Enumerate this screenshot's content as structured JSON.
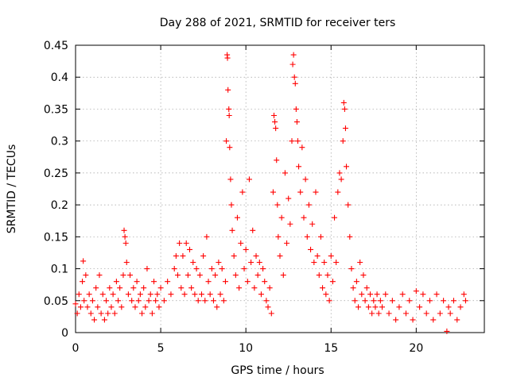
{
  "chart_data": {
    "type": "scatter",
    "title": "Day 288 of 2021, SRMTID for receiver ters",
    "xlabel": "GPS time / hours",
    "ylabel": "SRMTID / TECUs",
    "xlim": [
      0,
      24
    ],
    "ylim": [
      0,
      0.45
    ],
    "xticks": [
      "0",
      "5",
      "10",
      "15",
      "20"
    ],
    "xtick_values": [
      0,
      5,
      10,
      15,
      20
    ],
    "yticks": [
      "0",
      "0.05",
      "0.1",
      "0.15",
      "0.2",
      "0.25",
      "0.3",
      "0.35",
      "0.4",
      "0.45"
    ],
    "ytick_values": [
      0,
      0.05,
      0.1,
      0.15,
      0.2,
      0.25,
      0.3,
      0.35,
      0.4,
      0.45
    ],
    "grid": true,
    "marker": "+",
    "series_color": "#ff0000",
    "series": [
      {
        "name": "SRMTID",
        "points": [
          [
            0.0,
            0.045
          ],
          [
            0.1,
            0.03
          ],
          [
            0.2,
            0.06
          ],
          [
            0.3,
            0.04
          ],
          [
            0.4,
            0.08
          ],
          [
            0.45,
            0.112
          ],
          [
            0.5,
            0.05
          ],
          [
            0.6,
            0.09
          ],
          [
            0.7,
            0.04
          ],
          [
            0.8,
            0.06
          ],
          [
            0.9,
            0.03
          ],
          [
            1.0,
            0.05
          ],
          [
            1.1,
            0.02
          ],
          [
            1.2,
            0.07
          ],
          [
            1.3,
            0.04
          ],
          [
            1.4,
            0.09
          ],
          [
            1.5,
            0.03
          ],
          [
            1.6,
            0.06
          ],
          [
            1.7,
            0.02
          ],
          [
            1.8,
            0.05
          ],
          [
            1.9,
            0.03
          ],
          [
            2.0,
            0.07
          ],
          [
            2.1,
            0.04
          ],
          [
            2.2,
            0.06
          ],
          [
            2.3,
            0.03
          ],
          [
            2.4,
            0.08
          ],
          [
            2.5,
            0.05
          ],
          [
            2.6,
            0.07
          ],
          [
            2.7,
            0.04
          ],
          [
            2.8,
            0.09
          ],
          [
            2.85,
            0.16
          ],
          [
            2.9,
            0.15
          ],
          [
            2.95,
            0.14
          ],
          [
            3.0,
            0.11
          ],
          [
            3.1,
            0.06
          ],
          [
            3.2,
            0.09
          ],
          [
            3.3,
            0.05
          ],
          [
            3.4,
            0.07
          ],
          [
            3.5,
            0.04
          ],
          [
            3.6,
            0.08
          ],
          [
            3.7,
            0.05
          ],
          [
            3.8,
            0.06
          ],
          [
            3.9,
            0.03
          ],
          [
            4.0,
            0.07
          ],
          [
            4.1,
            0.04
          ],
          [
            4.2,
            0.1
          ],
          [
            4.3,
            0.05
          ],
          [
            4.4,
            0.06
          ],
          [
            4.5,
            0.03
          ],
          [
            4.6,
            0.08
          ],
          [
            4.7,
            0.05
          ],
          [
            4.8,
            0.06
          ],
          [
            4.9,
            0.04
          ],
          [
            5.0,
            0.07
          ],
          [
            5.2,
            0.05
          ],
          [
            5.4,
            0.08
          ],
          [
            5.6,
            0.06
          ],
          [
            5.8,
            0.1
          ],
          [
            5.9,
            0.12
          ],
          [
            6.0,
            0.09
          ],
          [
            6.1,
            0.14
          ],
          [
            6.2,
            0.07
          ],
          [
            6.3,
            0.12
          ],
          [
            6.4,
            0.06
          ],
          [
            6.5,
            0.14
          ],
          [
            6.6,
            0.09
          ],
          [
            6.7,
            0.13
          ],
          [
            6.8,
            0.07
          ],
          [
            6.9,
            0.11
          ],
          [
            7.0,
            0.06
          ],
          [
            7.1,
            0.1
          ],
          [
            7.2,
            0.05
          ],
          [
            7.3,
            0.09
          ],
          [
            7.4,
            0.06
          ],
          [
            7.5,
            0.12
          ],
          [
            7.6,
            0.05
          ],
          [
            7.7,
            0.15
          ],
          [
            7.8,
            0.08
          ],
          [
            7.9,
            0.06
          ],
          [
            8.0,
            0.1
          ],
          [
            8.1,
            0.05
          ],
          [
            8.2,
            0.09
          ],
          [
            8.3,
            0.04
          ],
          [
            8.4,
            0.11
          ],
          [
            8.5,
            0.06
          ],
          [
            8.6,
            0.1
          ],
          [
            8.7,
            0.05
          ],
          [
            8.8,
            0.08
          ],
          [
            8.85,
            0.3
          ],
          [
            8.9,
            0.435
          ],
          [
            8.92,
            0.43
          ],
          [
            8.95,
            0.38
          ],
          [
            9.0,
            0.35
          ],
          [
            9.02,
            0.34
          ],
          [
            9.05,
            0.29
          ],
          [
            9.1,
            0.24
          ],
          [
            9.15,
            0.2
          ],
          [
            9.2,
            0.16
          ],
          [
            9.3,
            0.12
          ],
          [
            9.4,
            0.09
          ],
          [
            9.5,
            0.18
          ],
          [
            9.6,
            0.07
          ],
          [
            9.7,
            0.14
          ],
          [
            9.8,
            0.22
          ],
          [
            9.9,
            0.1
          ],
          [
            10.0,
            0.13
          ],
          [
            10.1,
            0.08
          ],
          [
            10.2,
            0.24
          ],
          [
            10.3,
            0.11
          ],
          [
            10.4,
            0.16
          ],
          [
            10.5,
            0.07
          ],
          [
            10.6,
            0.12
          ],
          [
            10.7,
            0.09
          ],
          [
            10.8,
            0.11
          ],
          [
            10.9,
            0.06
          ],
          [
            11.0,
            0.1
          ],
          [
            11.1,
            0.08
          ],
          [
            11.2,
            0.05
          ],
          [
            11.3,
            0.04
          ],
          [
            11.4,
            0.07
          ],
          [
            11.5,
            0.03
          ],
          [
            11.6,
            0.22
          ],
          [
            11.65,
            0.34
          ],
          [
            11.7,
            0.33
          ],
          [
            11.75,
            0.32
          ],
          [
            11.8,
            0.27
          ],
          [
            11.85,
            0.2
          ],
          [
            11.9,
            0.15
          ],
          [
            12.0,
            0.12
          ],
          [
            12.1,
            0.18
          ],
          [
            12.2,
            0.09
          ],
          [
            12.3,
            0.25
          ],
          [
            12.4,
            0.14
          ],
          [
            12.5,
            0.21
          ],
          [
            12.6,
            0.17
          ],
          [
            12.7,
            0.3
          ],
          [
            12.75,
            0.42
          ],
          [
            12.8,
            0.435
          ],
          [
            12.85,
            0.4
          ],
          [
            12.9,
            0.39
          ],
          [
            12.95,
            0.35
          ],
          [
            13.0,
            0.33
          ],
          [
            13.05,
            0.3
          ],
          [
            13.1,
            0.26
          ],
          [
            13.2,
            0.22
          ],
          [
            13.3,
            0.29
          ],
          [
            13.4,
            0.18
          ],
          [
            13.5,
            0.24
          ],
          [
            13.6,
            0.15
          ],
          [
            13.7,
            0.2
          ],
          [
            13.8,
            0.13
          ],
          [
            13.9,
            0.17
          ],
          [
            14.0,
            0.11
          ],
          [
            14.1,
            0.22
          ],
          [
            14.2,
            0.12
          ],
          [
            14.3,
            0.09
          ],
          [
            14.4,
            0.15
          ],
          [
            14.5,
            0.07
          ],
          [
            14.6,
            0.11
          ],
          [
            14.7,
            0.06
          ],
          [
            14.8,
            0.09
          ],
          [
            14.9,
            0.05
          ],
          [
            15.0,
            0.12
          ],
          [
            15.1,
            0.08
          ],
          [
            15.2,
            0.18
          ],
          [
            15.3,
            0.11
          ],
          [
            15.4,
            0.22
          ],
          [
            15.5,
            0.25
          ],
          [
            15.6,
            0.24
          ],
          [
            15.7,
            0.3
          ],
          [
            15.75,
            0.36
          ],
          [
            15.8,
            0.35
          ],
          [
            15.85,
            0.32
          ],
          [
            15.9,
            0.26
          ],
          [
            16.0,
            0.2
          ],
          [
            16.1,
            0.15
          ],
          [
            16.2,
            0.1
          ],
          [
            16.3,
            0.07
          ],
          [
            16.4,
            0.05
          ],
          [
            16.5,
            0.08
          ],
          [
            16.6,
            0.04
          ],
          [
            16.7,
            0.11
          ],
          [
            16.8,
            0.06
          ],
          [
            16.9,
            0.09
          ],
          [
            17.0,
            0.05
          ],
          [
            17.1,
            0.07
          ],
          [
            17.2,
            0.04
          ],
          [
            17.3,
            0.06
          ],
          [
            17.4,
            0.03
          ],
          [
            17.5,
            0.05
          ],
          [
            17.6,
            0.04
          ],
          [
            17.7,
            0.06
          ],
          [
            17.8,
            0.03
          ],
          [
            17.9,
            0.05
          ],
          [
            18.0,
            0.04
          ],
          [
            18.2,
            0.06
          ],
          [
            18.4,
            0.03
          ],
          [
            18.6,
            0.05
          ],
          [
            18.8,
            0.02
          ],
          [
            19.0,
            0.04
          ],
          [
            19.2,
            0.06
          ],
          [
            19.4,
            0.03
          ],
          [
            19.6,
            0.05
          ],
          [
            19.8,
            0.02
          ],
          [
            20.0,
            0.065
          ],
          [
            20.2,
            0.04
          ],
          [
            20.4,
            0.06
          ],
          [
            20.6,
            0.03
          ],
          [
            20.8,
            0.05
          ],
          [
            21.0,
            0.02
          ],
          [
            21.2,
            0.06
          ],
          [
            21.4,
            0.03
          ],
          [
            21.6,
            0.05
          ],
          [
            21.8,
            0.002
          ],
          [
            21.9,
            0.04
          ],
          [
            22.0,
            0.03
          ],
          [
            22.2,
            0.05
          ],
          [
            22.4,
            0.02
          ],
          [
            22.6,
            0.04
          ],
          [
            22.8,
            0.06
          ],
          [
            22.9,
            0.05
          ]
        ]
      }
    ]
  }
}
